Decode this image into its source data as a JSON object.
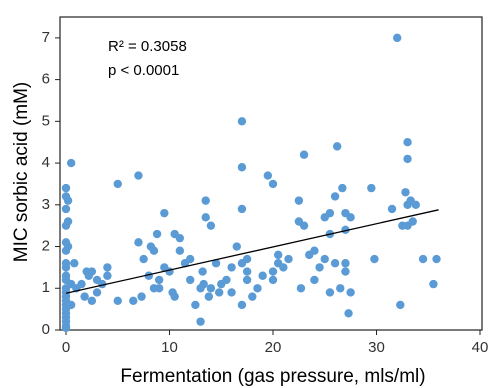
{
  "chart_data": {
    "type": "scatter",
    "x_label": "Fermentation (gas pressure, mls/ml)",
    "y_label": "MIC sorbic acid (mM)",
    "annotations": [
      "R² = 0.3058",
      "p < 0.0001"
    ],
    "xlim": [
      0,
      40
    ],
    "xticks": [
      0,
      10,
      20,
      30,
      40
    ],
    "ylim": [
      0,
      7.5
    ],
    "yticks": [
      0,
      1,
      2,
      3,
      4,
      5,
      6,
      7
    ],
    "grid": false,
    "series": [
      {
        "color": "#5b9bd5",
        "x": [
          0,
          0,
          0,
          0,
          0,
          0,
          0,
          0,
          0,
          0,
          0,
          0,
          0,
          0,
          0,
          0,
          0,
          0,
          0,
          0,
          0,
          0.2,
          0.2,
          0.2,
          0.5,
          0.5,
          0.8,
          0.5,
          1,
          1.5,
          1.8,
          2,
          2.2,
          2.5,
          2.5,
          3,
          3,
          3.5,
          4,
          4,
          5,
          5,
          6.5,
          7,
          7,
          7.3,
          7.5,
          8,
          8.2,
          8.5,
          8.5,
          8.8,
          9,
          9,
          9.5,
          9.5,
          10,
          10.3,
          10.5,
          10.5,
          11,
          11,
          11.5,
          12,
          12,
          12.5,
          13,
          13,
          13.2,
          13.3,
          13.5,
          13.5,
          13.8,
          14,
          14,
          14.5,
          14.8,
          15,
          15.5,
          16,
          16,
          16.5,
          17,
          17,
          17,
          17,
          17,
          17.5,
          17.5,
          17.5,
          18,
          18.5,
          19,
          19.5,
          20,
          20,
          20,
          20.5,
          20.5,
          21,
          21.5,
          22.5,
          22.5,
          22.7,
          23,
          23,
          23.5,
          24,
          24,
          24.5,
          25,
          25,
          25.5,
          25.5,
          25.5,
          26,
          26,
          26.2,
          26.5,
          26.7,
          27,
          27,
          27,
          27,
          27.3,
          27.5,
          27.5,
          29.5,
          29.8,
          31.5,
          32,
          32.3,
          32.5,
          32.8,
          33,
          33,
          33,
          33,
          33.3,
          33.5,
          33.8,
          34.5,
          35.5,
          35.8
        ],
        "values": [
          0.05,
          0.1,
          0.2,
          0.3,
          0.4,
          0.5,
          0.6,
          0.7,
          0.8,
          0.9,
          1.0,
          1.2,
          1.3,
          1.5,
          1.6,
          1.9,
          2.1,
          2.5,
          2.9,
          3.2,
          3.4,
          2.6,
          2.0,
          3.1,
          4.0,
          1.1,
          1.6,
          0.6,
          1.0,
          1.1,
          0.8,
          1.4,
          1.3,
          1.4,
          0.7,
          1.2,
          0.9,
          1.1,
          1.5,
          1.3,
          3.5,
          0.7,
          0.7,
          2.1,
          3.7,
          0.8,
          1.7,
          1.3,
          2.0,
          1.9,
          1.0,
          2.3,
          1.2,
          1.0,
          2.8,
          1.5,
          1.4,
          0.9,
          0.8,
          2.3,
          2.2,
          1.9,
          1.6,
          1.7,
          1.2,
          0.6,
          0.2,
          1.0,
          1.4,
          1.1,
          3.1,
          2.7,
          0.8,
          2.5,
          1.0,
          1.6,
          0.9,
          1.1,
          1.2,
          1.5,
          0.9,
          2.0,
          5.0,
          3.9,
          2.9,
          1.6,
          0.6,
          1.2,
          1.4,
          1.7,
          0.8,
          1.0,
          1.3,
          3.7,
          3.5,
          1.4,
          1.2,
          1.8,
          1.6,
          1.5,
          1.7,
          3.1,
          2.6,
          1.0,
          4.2,
          2.5,
          1.8,
          1.9,
          1.2,
          1.5,
          2.7,
          1.7,
          2.8,
          2.3,
          0.9,
          3.2,
          1.6,
          4.4,
          1.0,
          3.4,
          2.8,
          2.4,
          1.6,
          1.4,
          0.4,
          0.9,
          2.7,
          3.4,
          1.7,
          2.9,
          7.0,
          0.6,
          2.5,
          3.3,
          4.1,
          4.5,
          3.0,
          2.5,
          3.1,
          2.6,
          3.0,
          1.7,
          1.1,
          1.7
        ]
      }
    ],
    "trendline": {
      "color": "#000000",
      "x": [
        0,
        36
      ],
      "y": [
        0.88,
        2.88
      ]
    }
  }
}
